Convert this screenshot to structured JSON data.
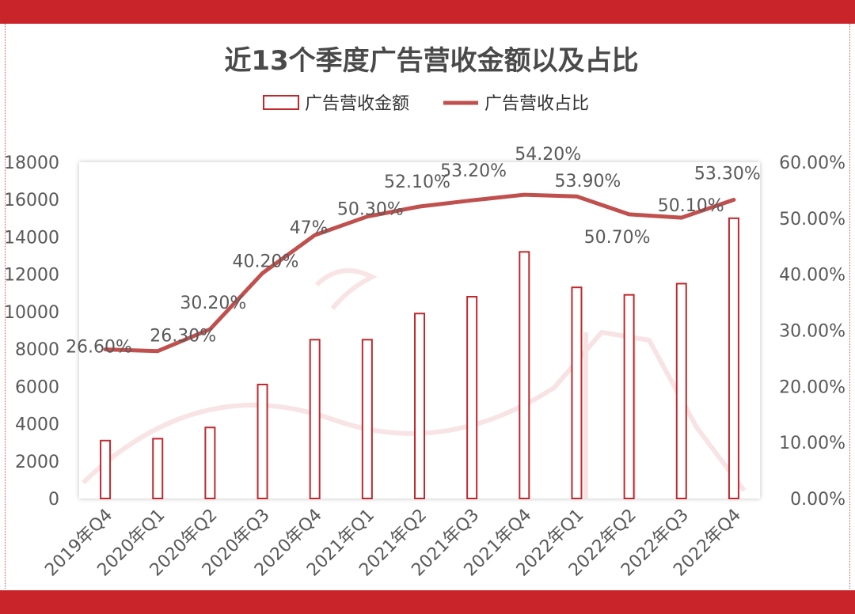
{
  "chart_data": {
    "type": "bar+line",
    "title": "近13个季度广告营收金额以及占比",
    "categories": [
      "2019年Q4",
      "2020年Q1",
      "2020年Q2",
      "2020年Q3",
      "2020年Q4",
      "2021年Q1",
      "2021年Q2",
      "2021年Q3",
      "2021年Q4",
      "2022年Q1",
      "2022年Q2",
      "2022年Q3",
      "2022年Q4"
    ],
    "series": [
      {
        "name": "广告营收金额",
        "type": "bar",
        "axis": "left",
        "values": [
          3100,
          3200,
          3800,
          6100,
          8500,
          8500,
          9900,
          10800,
          13200,
          11300,
          10900,
          11500,
          15000
        ]
      },
      {
        "name": "广告营收占比",
        "type": "line",
        "axis": "right",
        "values": [
          26.6,
          26.3,
          30.2,
          40.2,
          47,
          50.3,
          52.1,
          53.2,
          54.2,
          53.9,
          50.7,
          50.1,
          53.3
        ],
        "labels": [
          "26.60%",
          "26.30%",
          "30.20%",
          "40.20%",
          "47%",
          "50.30%",
          "52.10%",
          "53.20%",
          "54.20%",
          "53.90%",
          "50.70%",
          "50.10%",
          "53.30%"
        ]
      }
    ],
    "y_left": {
      "ylim": [
        0,
        18000
      ],
      "ticks": [
        "0",
        "2000",
        "4000",
        "6000",
        "8000",
        "10000",
        "12000",
        "14000",
        "16000",
        "18000"
      ]
    },
    "y_right": {
      "ylim": [
        0,
        60
      ],
      "ticks": [
        "0.00%",
        "10.00%",
        "20.00%",
        "30.00%",
        "40.00%",
        "50.00%",
        "60.00%"
      ]
    },
    "legend_position": "top-center",
    "grid": false,
    "colors": {
      "bar_stroke": "#c0282d",
      "line": "#c0504d",
      "accent": "#c8242a"
    }
  }
}
